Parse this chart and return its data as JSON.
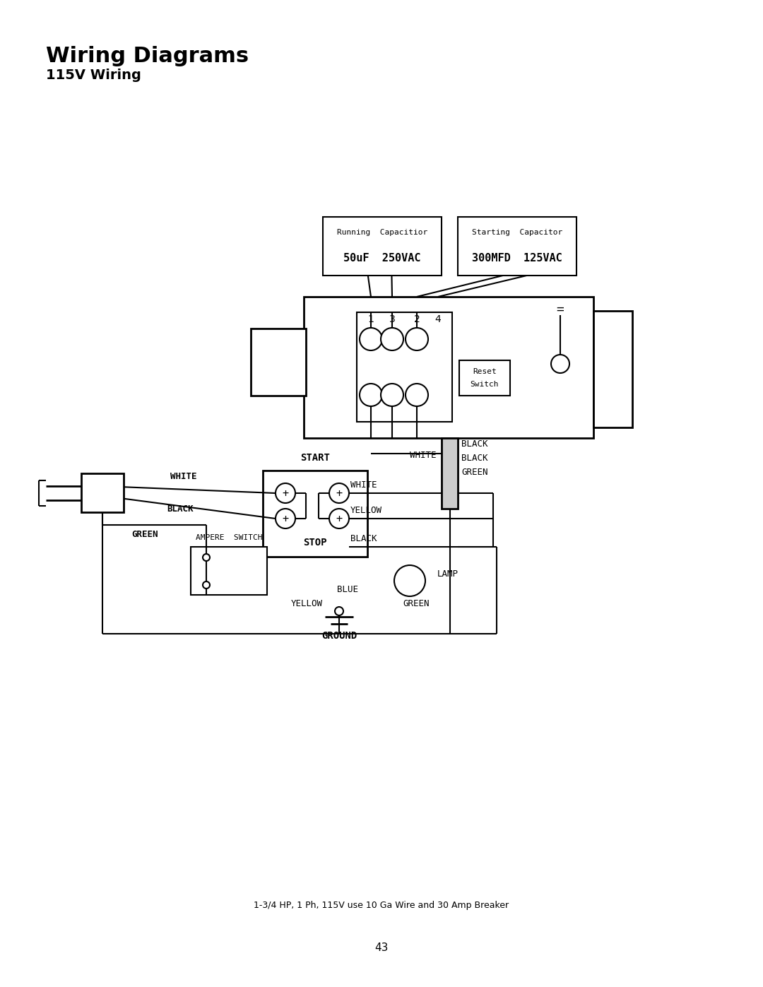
{
  "title": "Wiring Diagrams",
  "subtitle": "115V Wiring",
  "page_number": "43",
  "note": "1-3/4 HP, 1 Ph, 115V use 10 Ga Wire and 30 Amp Breaker",
  "bg": "#ffffff",
  "lc": "#000000",
  "running_cap_title": "Running  Capacitior",
  "running_cap_value": "50uF  250VAC",
  "starting_cap_title": "Starting  Capacitor",
  "starting_cap_value": "300MFD  125VAC"
}
